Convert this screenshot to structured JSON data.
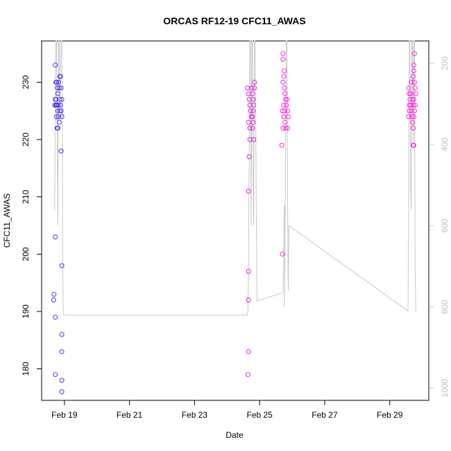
{
  "chart_data": {
    "type": "scatter",
    "title": "ORCAS RF12-19 CFC11_AWAS",
    "xlabel": "Date",
    "ylabel": "CFC11_AWAS",
    "x_ticks": [
      "Feb 19",
      "Feb 21",
      "Feb 23",
      "Feb 25",
      "Feb 27",
      "Feb 29"
    ],
    "x_tick_days": [
      19,
      21,
      23,
      25,
      27,
      29
    ],
    "xlim": [
      18.3,
      30.2
    ],
    "y_ticks": [
      180,
      190,
      200,
      210,
      220,
      230
    ],
    "ylim": [
      174.5,
      237.2
    ],
    "y2_ticks": [
      200,
      400,
      600,
      800,
      1000
    ],
    "y2lim": [
      1030,
      145
    ],
    "y2_reversed": true,
    "colors": {
      "early": "#5533ee",
      "late": "#ff22dd",
      "pressure_line": "#c8c8c8"
    },
    "series": [
      {
        "color_index": 0,
        "points": [
          [
            18.72,
            233
          ],
          [
            18.74,
            230
          ],
          [
            18.76,
            230
          ],
          [
            18.78,
            229
          ],
          [
            18.8,
            228
          ],
          [
            18.72,
            227
          ],
          [
            18.74,
            227
          ],
          [
            18.76,
            226
          ],
          [
            18.78,
            226
          ],
          [
            18.8,
            225
          ],
          [
            18.82,
            224
          ],
          [
            18.84,
            223
          ],
          [
            18.78,
            222
          ],
          [
            18.8,
            222
          ],
          [
            18.86,
            231
          ],
          [
            18.88,
            231
          ],
          [
            18.9,
            229
          ],
          [
            18.92,
            227
          ],
          [
            18.88,
            226
          ],
          [
            18.9,
            225
          ],
          [
            18.92,
            224
          ],
          [
            18.86,
            225
          ],
          [
            18.84,
            229
          ],
          [
            18.82,
            230
          ],
          [
            18.86,
            227
          ],
          [
            18.9,
            218
          ],
          [
            18.7,
            226
          ],
          [
            18.74,
            226
          ],
          [
            18.76,
            224
          ],
          [
            18.82,
            226
          ],
          [
            18.72,
            203
          ],
          [
            18.92,
            198
          ],
          [
            18.68,
            193
          ],
          [
            18.67,
            192
          ],
          [
            18.72,
            189
          ],
          [
            18.92,
            186
          ],
          [
            18.92,
            183
          ],
          [
            18.72,
            179
          ],
          [
            18.92,
            178
          ],
          [
            18.92,
            176
          ]
        ]
      },
      {
        "color_index": 1,
        "points": [
          [
            24.62,
            229
          ],
          [
            24.66,
            228
          ],
          [
            24.68,
            227
          ],
          [
            24.7,
            226
          ],
          [
            24.72,
            225
          ],
          [
            24.74,
            224
          ],
          [
            24.66,
            223
          ],
          [
            24.7,
            222
          ],
          [
            24.76,
            229
          ],
          [
            24.78,
            228
          ],
          [
            24.8,
            227
          ],
          [
            24.82,
            226
          ],
          [
            24.8,
            225
          ],
          [
            24.78,
            224
          ],
          [
            24.8,
            223
          ],
          [
            24.78,
            222
          ],
          [
            24.84,
            230
          ],
          [
            24.84,
            229
          ],
          [
            24.7,
            220
          ],
          [
            24.82,
            220
          ],
          [
            24.68,
            217
          ],
          [
            24.66,
            211
          ],
          [
            24.66,
            197
          ],
          [
            24.66,
            192
          ],
          [
            24.66,
            183
          ],
          [
            24.64,
            179
          ],
          [
            25.72,
            235
          ],
          [
            25.72,
            234
          ],
          [
            25.76,
            232
          ],
          [
            25.74,
            231
          ],
          [
            25.72,
            230
          ],
          [
            25.76,
            229
          ],
          [
            25.78,
            228
          ],
          [
            25.8,
            227
          ],
          [
            25.74,
            226
          ],
          [
            25.76,
            225
          ],
          [
            25.74,
            224
          ],
          [
            25.78,
            223
          ],
          [
            25.8,
            222
          ],
          [
            25.7,
            225
          ],
          [
            25.72,
            222
          ],
          [
            25.82,
            226
          ],
          [
            25.84,
            227
          ],
          [
            25.86,
            225
          ],
          [
            25.88,
            224
          ],
          [
            25.86,
            222
          ],
          [
            25.68,
            219
          ],
          [
            25.7,
            200
          ],
          [
            29.58,
            229
          ],
          [
            29.6,
            228
          ],
          [
            29.62,
            227
          ],
          [
            29.64,
            226
          ],
          [
            29.66,
            225
          ],
          [
            29.68,
            224
          ],
          [
            29.7,
            223
          ],
          [
            29.72,
            222
          ],
          [
            29.74,
            233
          ],
          [
            29.76,
            235
          ],
          [
            29.74,
            232
          ],
          [
            29.72,
            231
          ],
          [
            29.76,
            230
          ],
          [
            29.78,
            229
          ],
          [
            29.8,
            228
          ],
          [
            29.74,
            227
          ],
          [
            29.72,
            226
          ],
          [
            29.76,
            225
          ],
          [
            29.74,
            224
          ],
          [
            29.78,
            226
          ],
          [
            29.72,
            219
          ],
          [
            29.74,
            219
          ],
          [
            29.6,
            225
          ],
          [
            29.6,
            226
          ],
          [
            29.64,
            228
          ],
          [
            29.66,
            230
          ],
          [
            29.7,
            227
          ],
          [
            29.58,
            224
          ]
        ]
      }
    ],
    "pressure_line": [
      [
        18.7,
        560
      ],
      [
        18.72,
        300
      ],
      [
        18.74,
        145
      ],
      [
        18.76,
        145
      ],
      [
        18.78,
        400
      ],
      [
        18.8,
        600
      ],
      [
        18.82,
        145
      ],
      [
        18.84,
        145
      ],
      [
        18.86,
        300
      ],
      [
        18.88,
        200
      ],
      [
        18.9,
        145
      ],
      [
        18.92,
        145
      ],
      [
        18.94,
        500
      ],
      [
        18.96,
        800
      ],
      [
        18.98,
        820
      ],
      [
        24.62,
        820
      ],
      [
        24.64,
        810
      ],
      [
        24.66,
        700
      ],
      [
        24.68,
        400
      ],
      [
        24.7,
        145
      ],
      [
        24.72,
        145
      ],
      [
        24.74,
        600
      ],
      [
        24.76,
        145
      ],
      [
        24.78,
        145
      ],
      [
        24.8,
        500
      ],
      [
        24.82,
        600
      ],
      [
        24.84,
        145
      ],
      [
        24.86,
        145
      ],
      [
        24.88,
        300
      ],
      [
        24.9,
        600
      ],
      [
        24.92,
        785
      ],
      [
        25.72,
        765
      ],
      [
        25.74,
        620
      ],
      [
        25.76,
        550
      ],
      [
        25.78,
        560
      ],
      [
        25.76,
        800
      ],
      [
        25.78,
        700
      ],
      [
        25.8,
        400
      ],
      [
        25.82,
        145
      ],
      [
        25.84,
        145
      ],
      [
        25.86,
        550
      ],
      [
        25.88,
        760
      ],
      [
        25.9,
        600
      ],
      [
        29.56,
        810
      ],
      [
        29.58,
        600
      ],
      [
        29.6,
        145
      ],
      [
        29.62,
        145
      ],
      [
        29.64,
        500
      ],
      [
        29.66,
        560
      ],
      [
        29.68,
        145
      ],
      [
        29.7,
        145
      ],
      [
        29.72,
        400
      ],
      [
        29.74,
        145
      ],
      [
        29.76,
        145
      ],
      [
        29.78,
        700
      ],
      [
        29.8,
        810
      ],
      [
        29.82,
        812
      ]
    ],
    "grid": false,
    "legend": "none"
  }
}
